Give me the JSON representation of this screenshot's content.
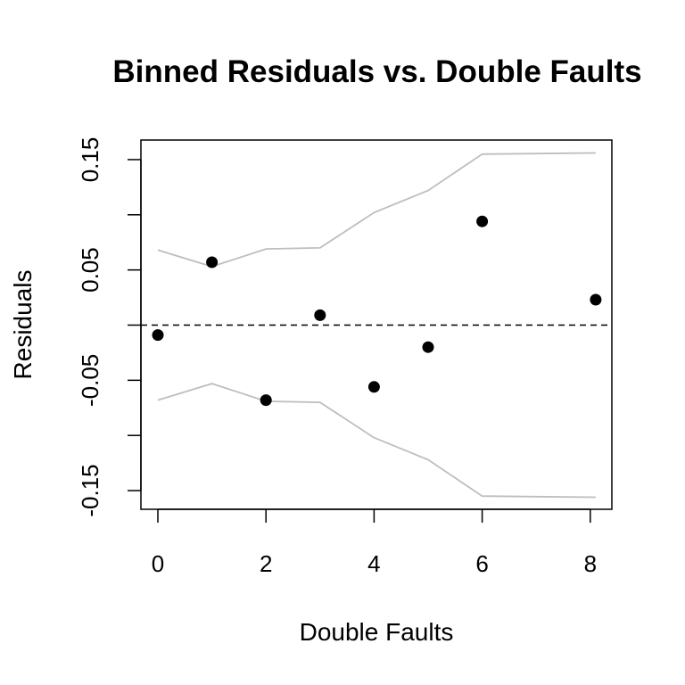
{
  "chart_data": {
    "type": "scatter",
    "title": "Binned Residuals vs. Double Faults",
    "xlabel": "Double Faults",
    "ylabel": "Residuals",
    "xlim": [
      0,
      8
    ],
    "ylim": [
      -0.15,
      0.15
    ],
    "x_ticks": [
      "0",
      "2",
      "4",
      "6",
      "8"
    ],
    "y_ticks": [
      "-0.15",
      "-0.05",
      "0.05",
      "0.15"
    ],
    "y_tick_values": [
      -0.15,
      -0.1,
      -0.05,
      0,
      0.05,
      0.1,
      0.15
    ],
    "x_tick_values": [
      0,
      2,
      4,
      6,
      8
    ],
    "grid": false,
    "reference_line": {
      "y": 0,
      "style": "dashed",
      "color": "#000000"
    },
    "points": {
      "x": [
        0,
        1,
        2,
        3,
        4,
        5,
        6,
        8.1
      ],
      "y": [
        -0.009,
        0.057,
        -0.068,
        0.009,
        -0.056,
        -0.02,
        0.094,
        0.023
      ]
    },
    "upper_bound": {
      "x": [
        0,
        1,
        2,
        3,
        4,
        5,
        6,
        8.1
      ],
      "y": [
        0.068,
        0.053,
        0.069,
        0.07,
        0.102,
        0.122,
        0.155,
        0.156
      ]
    },
    "lower_bound": {
      "x": [
        0,
        1,
        2,
        3,
        4,
        5,
        6,
        8.1
      ],
      "y": [
        -0.068,
        -0.053,
        -0.069,
        -0.07,
        -0.102,
        -0.122,
        -0.155,
        -0.156
      ]
    },
    "colors": {
      "points": "#000000",
      "bounds": "#bebebe",
      "axes": "#000000"
    }
  }
}
